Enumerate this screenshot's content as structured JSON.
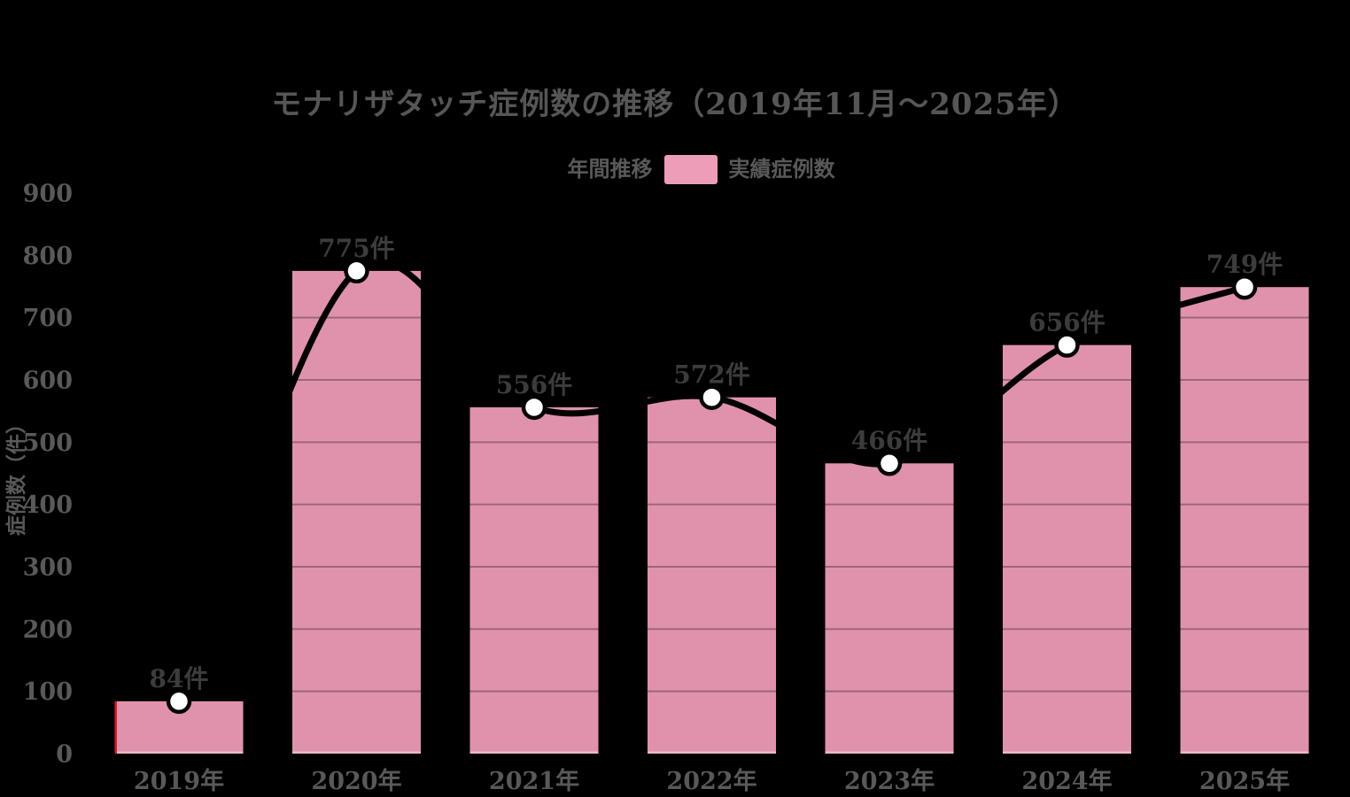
{
  "title": "モナリザタッチ症例数の推移（2019年11月～2025年）",
  "legend": {
    "line_label": "年間推移",
    "bar_label": "実績症例数"
  },
  "chart_data": {
    "type": "bar",
    "title": "モナリザタッチ症例数の推移（2019年11月～2025年）",
    "categories": [
      "2019年",
      "2020年",
      "2021年",
      "2022年",
      "2023年",
      "2024年",
      "2025年"
    ],
    "series": [
      {
        "name": "実績症例数",
        "type": "bar",
        "values": [
          84,
          775,
          556,
          572,
          466,
          656,
          749
        ],
        "color": "#e092ac"
      },
      {
        "name": "年間推移",
        "type": "line",
        "smooth": true,
        "values": [
          84,
          775,
          556,
          572,
          466,
          656,
          749
        ],
        "color": "#000000",
        "marker": "circle-white-black-ring"
      }
    ],
    "data_labels": [
      "84件",
      "775件",
      "556件",
      "572件",
      "466件",
      "656件",
      "749件"
    ],
    "xlabel": "",
    "ylabel": "症例数（件）",
    "ylim": [
      0,
      900
    ],
    "ytick_step": 100,
    "yticks": [
      "0",
      "100",
      "200",
      "300",
      "400",
      "500",
      "600",
      "700",
      "800",
      "900"
    ],
    "grid": true,
    "legend_position": "top-center"
  },
  "colors": {
    "background": "#000000",
    "bar": "#e092ac",
    "legend_swatch": "#ee9db9",
    "line": "#000000",
    "marker_fill": "#ffffff",
    "marker_ring": "#000000",
    "grid_overlay": "rgba(0,0,0,0.30)",
    "bar_bottom_highlight": "rgba(255,255,255,0.35)",
    "title_text": "#565656",
    "axis_text": "#595959",
    "data_label_text": "#3c3c3c",
    "first_bar_accent": "#e0192f"
  }
}
